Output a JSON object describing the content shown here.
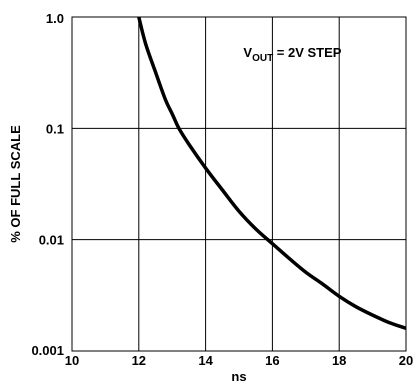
{
  "chart_data": {
    "type": "line",
    "title": "",
    "xlabel": "ns",
    "ylabel": "% OF FULL SCALE",
    "xlim": [
      10,
      20
    ],
    "ylim": [
      0.001,
      1.0
    ],
    "yscale": "log",
    "grid": true,
    "x_ticks": [
      10,
      12,
      14,
      16,
      18,
      20
    ],
    "x_tick_labels": [
      "10",
      "12",
      "14",
      "16",
      "18",
      "20"
    ],
    "y_ticks": [
      0.001,
      0.01,
      0.1,
      1.0
    ],
    "y_tick_labels": [
      "0.001",
      "0.01",
      "0.1",
      "1.0"
    ],
    "annotation": {
      "prefix": "V",
      "subscript": "OUT",
      "suffix": " = 2V STEP"
    },
    "series": [
      {
        "x": [
          12.0,
          12.2,
          12.5,
          12.8,
          13.0,
          13.2,
          13.5,
          14.0,
          14.5,
          15.0,
          15.5,
          16.0,
          16.5,
          17.0,
          17.5,
          18.0,
          18.5,
          19.0,
          19.5,
          20.0
        ],
        "y": [
          1.0,
          0.58,
          0.32,
          0.18,
          0.135,
          0.1,
          0.072,
          0.044,
          0.028,
          0.018,
          0.0125,
          0.0092,
          0.0068,
          0.0051,
          0.004,
          0.0031,
          0.0025,
          0.0021,
          0.0018,
          0.0016
        ]
      }
    ],
    "line_color": "#000000"
  }
}
